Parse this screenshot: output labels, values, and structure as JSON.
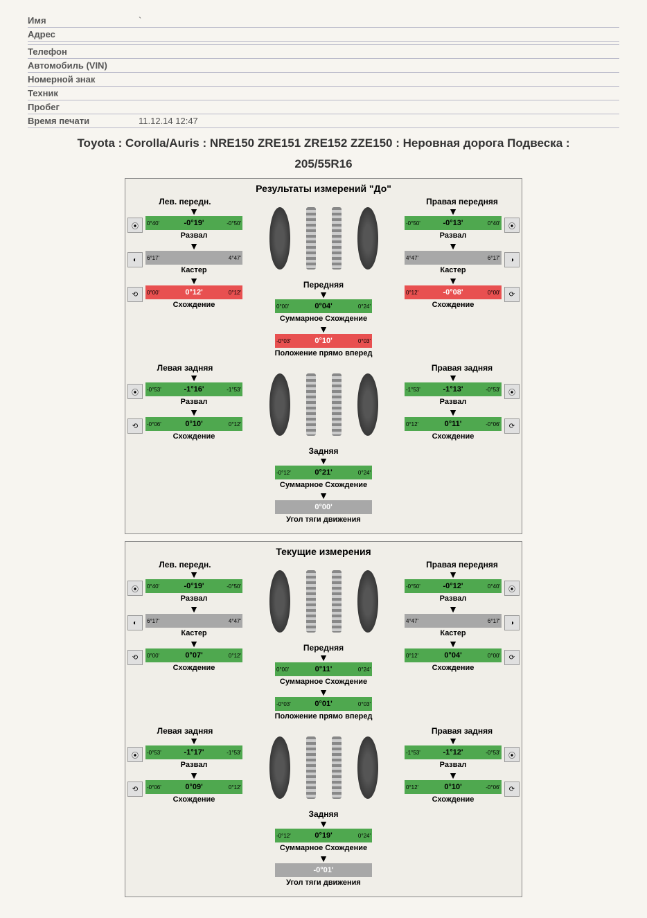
{
  "form": {
    "labels": {
      "name": "Имя",
      "address": "Адрес",
      "phone": "Телефон",
      "vin": "Автомобиль (VIN)",
      "plate": "Номерной знак",
      "tech": "Техник",
      "mileage": "Пробег",
      "print_time": "Время печати"
    },
    "values": {
      "print_time": "11.12.14 12:47"
    }
  },
  "title_line1": "Toyota : Corolla/Auris : NRE150 ZRE151 ZRE152 ZZE150 : Неровная дорога Подвеска :",
  "title_line2": "205/55R16",
  "colors": {
    "green": "#4fa84f",
    "red": "#e85050",
    "grey": "#a8a8a8",
    "page_bg": "#f7f5f0"
  },
  "labels": {
    "camber": "Развал",
    "caster": "Кастер",
    "toe": "Схождение",
    "front": "Передняя",
    "rear": "Задняя",
    "total_toe": "Суммарное Схождение",
    "steer_ahead": "Положение прямо вперед",
    "thrust": "Угол тяги движения",
    "left_front": "Лев. передн.",
    "right_front": "Правая передняя",
    "left_rear": "Левая задняя",
    "right_rear": "Правая задняя"
  },
  "panels": [
    {
      "title": "Результаты измерений \"До\"",
      "front": {
        "left": {
          "camber": {
            "lo": "0°40'",
            "val": "-0°19'",
            "hi": "-0°50'",
            "color": "green"
          },
          "caster": {
            "lo": "6°17'",
            "val": "",
            "hi": "4°47'",
            "color": "grey"
          },
          "toe": {
            "lo": "0°00'",
            "val": "0°12'",
            "hi": "0°12'",
            "color": "red"
          }
        },
        "right": {
          "camber": {
            "lo": "-0°50'",
            "val": "-0°13'",
            "hi": "0°40'",
            "color": "green"
          },
          "caster": {
            "lo": "4°47'",
            "val": "",
            "hi": "6°17'",
            "color": "grey"
          },
          "toe": {
            "lo": "0°12'",
            "val": "-0°08'",
            "hi": "0°00'",
            "color": "red"
          }
        },
        "center": {
          "total_toe": {
            "lo": "0°00'",
            "val": "0°04'",
            "hi": "0°24'",
            "color": "green"
          },
          "steer": {
            "lo": "-0°03'",
            "val": "0°10'",
            "hi": "0°03'",
            "color": "red"
          }
        }
      },
      "rear": {
        "left": {
          "camber": {
            "lo": "-0°53'",
            "val": "-1°16'",
            "hi": "-1°53'",
            "color": "green"
          },
          "toe": {
            "lo": "-0°06'",
            "val": "0°10'",
            "hi": "0°12'",
            "color": "green"
          }
        },
        "right": {
          "camber": {
            "lo": "-1°53'",
            "val": "-1°13'",
            "hi": "-0°53'",
            "color": "green"
          },
          "toe": {
            "lo": "0°12'",
            "val": "0°11'",
            "hi": "-0°06'",
            "color": "green"
          }
        },
        "center": {
          "total_toe": {
            "lo": "-0°12'",
            "val": "0°21'",
            "hi": "0°24'",
            "color": "green"
          },
          "thrust": {
            "lo": "",
            "val": "0°00'",
            "hi": "",
            "color": "grey"
          }
        }
      }
    },
    {
      "title": "Текущие измерения",
      "front": {
        "left": {
          "camber": {
            "lo": "0°40'",
            "val": "-0°19'",
            "hi": "-0°50'",
            "color": "green"
          },
          "caster": {
            "lo": "6°17'",
            "val": "",
            "hi": "4°47'",
            "color": "grey"
          },
          "toe": {
            "lo": "0°00'",
            "val": "0°07'",
            "hi": "0°12'",
            "color": "green"
          }
        },
        "right": {
          "camber": {
            "lo": "-0°50'",
            "val": "-0°12'",
            "hi": "0°40'",
            "color": "green"
          },
          "caster": {
            "lo": "4°47'",
            "val": "",
            "hi": "6°17'",
            "color": "grey"
          },
          "toe": {
            "lo": "0°12'",
            "val": "0°04'",
            "hi": "0°00'",
            "color": "green"
          }
        },
        "center": {
          "total_toe": {
            "lo": "0°00'",
            "val": "0°11'",
            "hi": "0°24'",
            "color": "green"
          },
          "steer": {
            "lo": "-0°03'",
            "val": "0°01'",
            "hi": "0°03'",
            "color": "green"
          }
        }
      },
      "rear": {
        "left": {
          "camber": {
            "lo": "-0°53'",
            "val": "-1°17'",
            "hi": "-1°53'",
            "color": "green"
          },
          "toe": {
            "lo": "-0°06'",
            "val": "0°09'",
            "hi": "0°12'",
            "color": "green"
          }
        },
        "right": {
          "camber": {
            "lo": "-1°53'",
            "val": "-1°12'",
            "hi": "-0°53'",
            "color": "green"
          },
          "toe": {
            "lo": "0°12'",
            "val": "0°10'",
            "hi": "-0°06'",
            "color": "green"
          }
        },
        "center": {
          "total_toe": {
            "lo": "-0°12'",
            "val": "0°19'",
            "hi": "0°24'",
            "color": "green"
          },
          "thrust": {
            "lo": "",
            "val": "-0°01'",
            "hi": "",
            "color": "grey"
          }
        }
      }
    }
  ]
}
